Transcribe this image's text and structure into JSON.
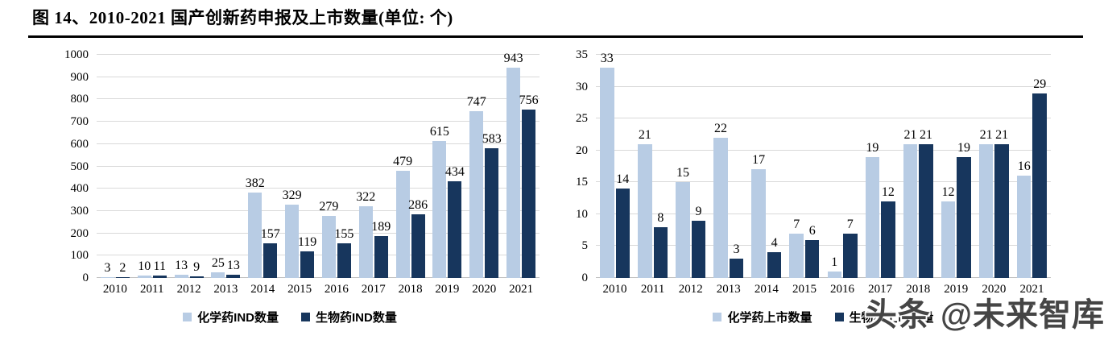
{
  "title": "图 14、2010-2021 国产创新药申报及上市数量(单位: 个)",
  "watermark": "头条 @未来智库",
  "colors": {
    "series_light": "#b8cce4",
    "series_dark": "#17365d",
    "gridline": "#d9d9d9",
    "axis_line": "#bfbfbf",
    "title_text": "#000000",
    "watermark_text": "#454545"
  },
  "chart_data": [
    {
      "type": "bar",
      "title": "",
      "xlabel": "",
      "ylabel": "",
      "categories": [
        "2010",
        "2011",
        "2012",
        "2013",
        "2014",
        "2015",
        "2016",
        "2017",
        "2018",
        "2019",
        "2020",
        "2021"
      ],
      "series": [
        {
          "key": "chem-ind",
          "name": "化学药IND数量",
          "color": "#b8cce4",
          "values": [
            3,
            10,
            13,
            25,
            382,
            329,
            279,
            322,
            479,
            615,
            747,
            943
          ]
        },
        {
          "key": "bio-ind",
          "name": "生物药IND数量",
          "color": "#17365d",
          "values": [
            2,
            11,
            9,
            13,
            157,
            119,
            155,
            189,
            286,
            434,
            583,
            756
          ]
        }
      ],
      "ylim": [
        0,
        1000
      ],
      "ytick_step": 100,
      "grid": true,
      "data_labels": true,
      "legend_position": "bottom"
    },
    {
      "type": "bar",
      "title": "",
      "xlabel": "",
      "ylabel": "",
      "categories": [
        "2010",
        "2011",
        "2012",
        "2013",
        "2014",
        "2015",
        "2016",
        "2017",
        "2018",
        "2019",
        "2020",
        "2021"
      ],
      "series": [
        {
          "key": "chem-listed",
          "name": "化学药上市数量",
          "color": "#b8cce4",
          "values": [
            33,
            21,
            15,
            22,
            17,
            7,
            1,
            19,
            21,
            12,
            21,
            16
          ]
        },
        {
          "key": "bio-listed",
          "name": "生物药上市数量",
          "color": "#17365d",
          "values": [
            14,
            8,
            9,
            3,
            4,
            6,
            7,
            12,
            21,
            19,
            21,
            29
          ]
        }
      ],
      "ylim": [
        0,
        35
      ],
      "ytick_step": 5,
      "grid": true,
      "data_labels": true,
      "legend_position": "bottom"
    }
  ]
}
